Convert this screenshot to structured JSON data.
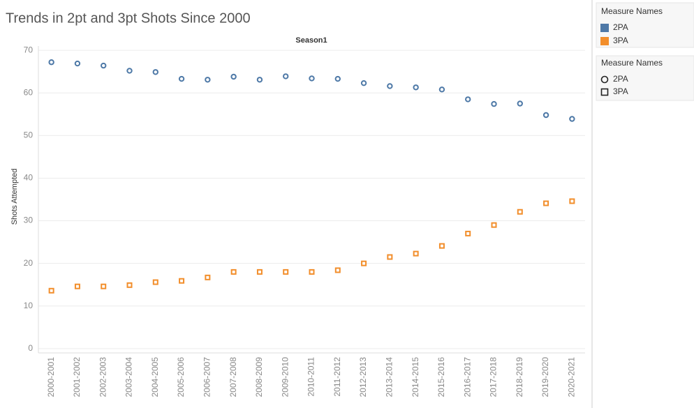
{
  "chart_data": {
    "type": "scatter",
    "title": "Trends in 2pt and 3pt Shots Since 2000",
    "header": "Season1",
    "y_label": "Shots Attempted",
    "color_legend_title": "Measure Names",
    "shape_legend_title": "Measure Names",
    "categories": [
      "2000-2001",
      "2001-2002",
      "2002-2003",
      "2003-2004",
      "2004-2005",
      "2005-2006",
      "2006-2007",
      "2007-2008",
      "2008-2009",
      "2009-2010",
      "2010-2011",
      "2011-2012",
      "2012-2013",
      "2013-2014",
      "2014-2015",
      "2015-2016",
      "2016-2017",
      "2017-2018",
      "2018-2019",
      "2019-2020",
      "2020-2021"
    ],
    "series": [
      {
        "name": "2PA",
        "color": "#4e79a7",
        "marker": "circle",
        "values": [
          67.2,
          66.9,
          66.4,
          65.2,
          64.9,
          63.3,
          63.1,
          63.8,
          63.1,
          63.9,
          63.4,
          63.3,
          62.3,
          61.6,
          61.3,
          60.8,
          58.5,
          57.4,
          57.5,
          54.8,
          53.9
        ]
      },
      {
        "name": "3PA",
        "color": "#f28e2b",
        "marker": "square",
        "values": [
          13.6,
          14.6,
          14.6,
          14.9,
          15.6,
          15.9,
          16.7,
          18.0,
          18.0,
          18.0,
          18.0,
          18.4,
          20.0,
          21.5,
          22.3,
          24.1,
          27.0,
          29.0,
          32.1,
          34.1,
          34.6
        ]
      }
    ],
    "ylim": [
      -1,
      71
    ],
    "yticks": [
      0,
      10,
      20,
      30,
      40,
      50,
      60,
      70
    ],
    "grid": true
  }
}
